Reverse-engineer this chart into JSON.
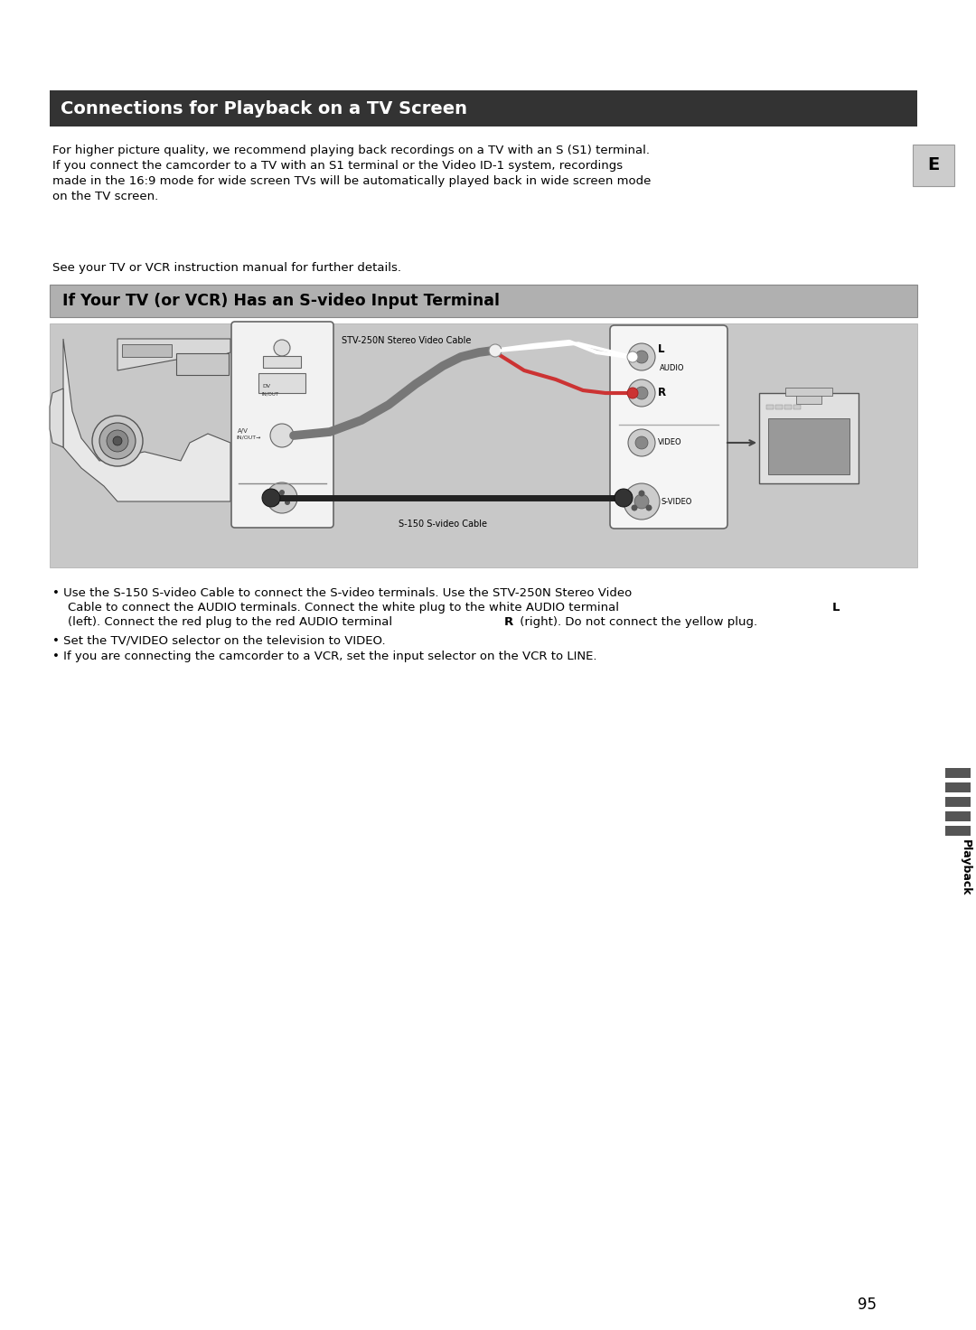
{
  "page_bg": "#ffffff",
  "title_bar_color": "#333333",
  "title_text": "Connections for Playback on a TV Screen",
  "title_text_color": "#ffffff",
  "title_font_size": 14,
  "subtitle_bar_color": "#b0b0b0",
  "subtitle_text": "If Your TV (or VCR) Has an S-video Input Terminal",
  "subtitle_text_color": "#000000",
  "subtitle_font_size": 12.5,
  "body_font_size": 9.5,
  "body_text_1_line1": "For higher picture quality, we recommend playing back recordings on a TV with an S (S1) terminal.",
  "body_text_1_line2": "If you connect the camcorder to a TV with an S1 terminal or the Video ID-1 system, recordings",
  "body_text_1_line3": "made in the 16:9 mode for wide screen TVs will be automatically played back in wide screen mode",
  "body_text_1_line4": "on the TV screen.",
  "body_text_2": "See your TV or VCR instruction manual for further details.",
  "stv_label": "STV-250N Stereo Video Cable",
  "s150_label": "S-150 S-video Cable",
  "audio_l": "L",
  "audio_r": "R",
  "audio_label": "AUDIO",
  "video_label": "VIDEO",
  "svideo_label": "S-VIDEO",
  "bullet1a": "• Use the S-150 S-video Cable to connect the S-video terminals. Use the STV-250N Stereo Video",
  "bullet1b": "    Cable to connect the AUDIO terminals. Connect the white plug to the white AUDIO terminal ​L",
  "bullet1c": "    (left). Connect the red plug to the red AUDIO terminal ​R​ (right). Do not connect the yellow plug.",
  "bullet2": "• Set the TV/VIDEO selector on the television to VIDEO.",
  "bullet3": "• If you are connecting the camcorder to a VCR, set the input selector on the VCR to LINE.",
  "e_text": "E",
  "page_number": "95",
  "playback_label": "Playback",
  "diagram_bg": "#cccccc",
  "sidebar_stripe_color": "#555555"
}
